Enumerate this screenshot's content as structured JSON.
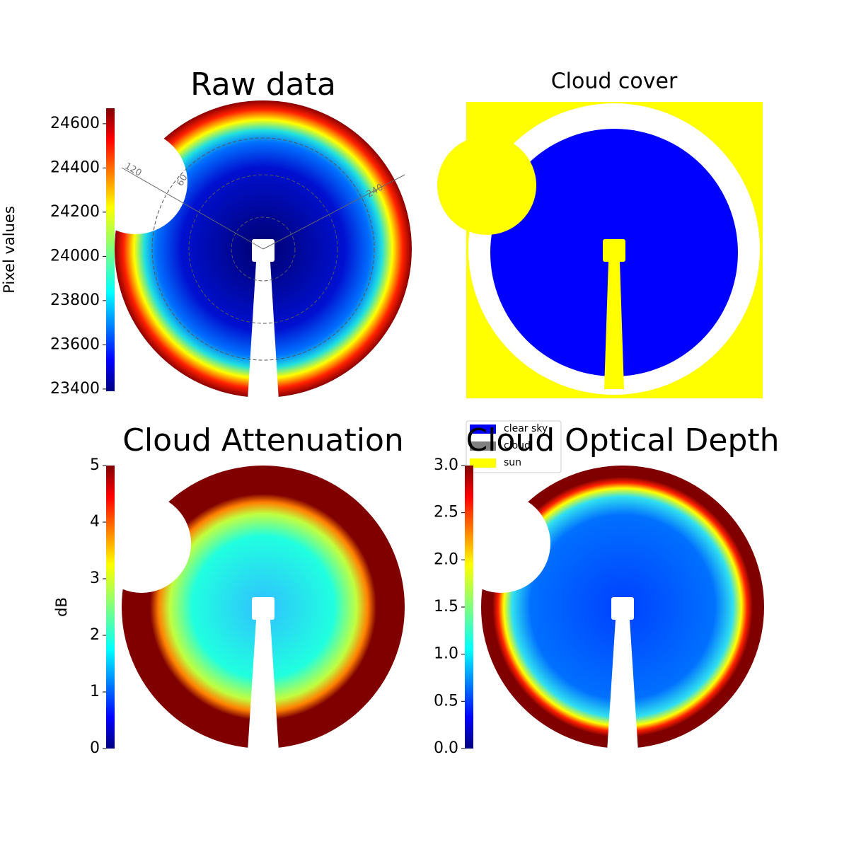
{
  "chart_data": [
    {
      "type": "image",
      "title": "Raw data",
      "colorbar_label": "Pixel values",
      "colormap": "jet",
      "ylim": [
        23390,
        24670
      ],
      "yticks": [
        23400,
        23600,
        23800,
        24000,
        24200,
        24400,
        24600
      ],
      "annotations": [
        "120",
        "60",
        "240"
      ]
    },
    {
      "type": "categorical",
      "title": "Cloud cover",
      "series": [
        {
          "name": "clear sky",
          "color": "#0000ff"
        },
        {
          "name": "cloud",
          "color": "#808080"
        },
        {
          "name": "sun",
          "color": "#ffff00"
        }
      ]
    },
    {
      "type": "image",
      "title": "Cloud Attenuation",
      "colorbar_label": "dB",
      "colormap": "jet",
      "ylim": [
        0,
        5
      ],
      "yticks": [
        0,
        1,
        2,
        3,
        4,
        5
      ]
    },
    {
      "type": "image",
      "title": "Cloud Optical Depth",
      "colormap": "jet",
      "ylim": [
        0,
        3
      ],
      "yticks": [
        {
          "value": 0,
          "label": "0.0"
        },
        0.5,
        {
          "value": 1,
          "label": "1.0"
        },
        1.5,
        {
          "value": 2,
          "label": "2.0"
        },
        2.5,
        {
          "value": 3,
          "label": "3.0"
        }
      ]
    }
  ]
}
